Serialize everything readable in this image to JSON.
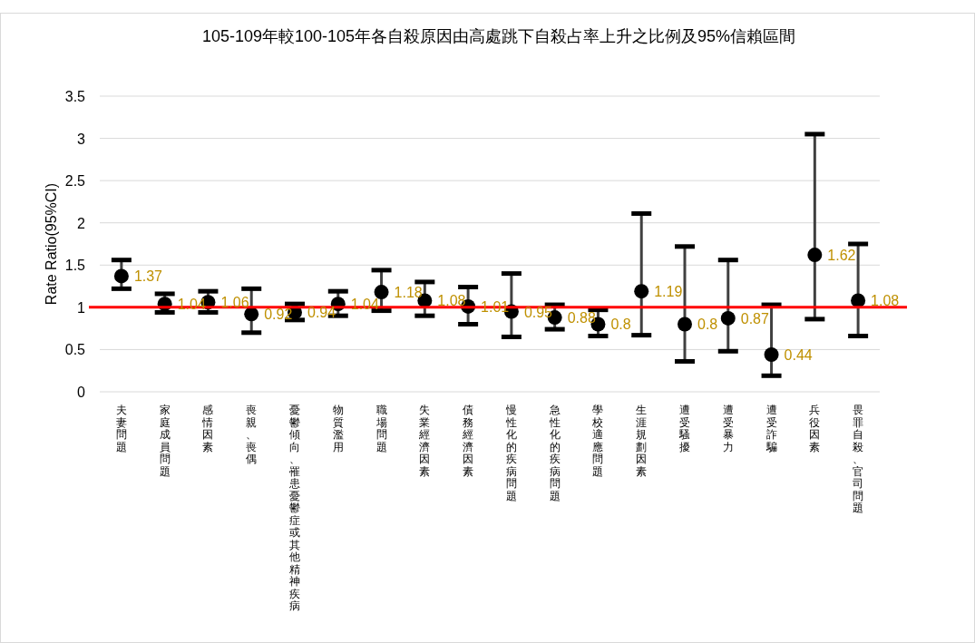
{
  "chart_data": {
    "type": "scatter",
    "title": "105-109年較100-105年各自殺原因由高處跳下自殺占率上升之比例及95%信賴區間",
    "ylabel": "Rate Ratio(95%CI)",
    "categories": [
      "夫妻問題",
      "家庭成員問題",
      "感情因素",
      "喪親、喪偶",
      "憂鬱傾向、罹患憂鬱症或其他精神疾病",
      "物質濫用",
      "職場問題",
      "失業經濟因素",
      "債務經濟因素",
      "慢性化的疾病問題",
      "急性化的疾病問題",
      "學校適應問題",
      "生涯規劃因素",
      "遭受騷擾",
      "遭受暴力",
      "遭受詐騙",
      "兵役因素",
      "畏罪自殺、官司問題"
    ],
    "values": [
      1.37,
      1.04,
      1.06,
      0.92,
      0.94,
      1.04,
      1.18,
      1.08,
      1.01,
      0.95,
      0.88,
      0.8,
      1.19,
      0.8,
      0.87,
      0.44,
      1.62,
      1.08
    ],
    "errors": [
      [
        1.22,
        1.56
      ],
      [
        0.94,
        1.16
      ],
      [
        0.94,
        1.19
      ],
      [
        0.7,
        1.22
      ],
      [
        0.85,
        1.04
      ],
      [
        0.9,
        1.19
      ],
      [
        0.96,
        1.44
      ],
      [
        0.9,
        1.3
      ],
      [
        0.8,
        1.24
      ],
      [
        0.65,
        1.4
      ],
      [
        0.74,
        1.03
      ],
      [
        0.66,
        0.97
      ],
      [
        0.67,
        2.11
      ],
      [
        0.36,
        1.72
      ],
      [
        0.48,
        1.56
      ],
      [
        0.19,
        1.03
      ],
      [
        0.86,
        3.05
      ],
      [
        0.66,
        1.75
      ]
    ],
    "color": "#000000",
    "ylim": [
      0,
      3.5
    ],
    "yticks": [
      0,
      0.5,
      1,
      1.5,
      2,
      2.5,
      3,
      3.5
    ],
    "grid": "y",
    "marker": "circle",
    "data_labels": true,
    "legend": false,
    "ref_lines": [
      {
        "axis": "y",
        "value": 1,
        "color": "#ff0000"
      }
    ]
  }
}
